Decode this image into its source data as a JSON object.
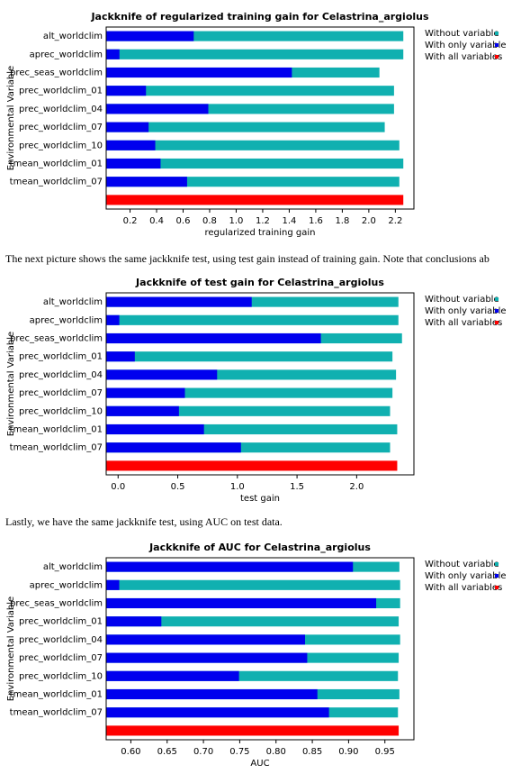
{
  "chart_data": [
    {
      "type": "bar",
      "title": "Jackknife of regularized training gain for Celastrina_argiolus",
      "xlabel": "regularized training gain",
      "ylabel": "Environmental Variable",
      "categories": [
        "alt_worldclim",
        "aprec_worldclim",
        "prec_seas_worldclim",
        "prec_worldclim_01",
        "prec_worldclim_04",
        "prec_worldclim_07",
        "prec_worldclim_10",
        "tmean_worldclim_01",
        "tmean_worldclim_07",
        null
      ],
      "series": [
        {
          "name": "Without variable",
          "color": "#10b0b0",
          "values": [
            2.26,
            2.26,
            2.08,
            2.19,
            2.19,
            2.12,
            2.23,
            2.26,
            2.23,
            null
          ]
        },
        {
          "name": "With only variable",
          "color": "#0000ee",
          "values": [
            0.68,
            0.12,
            1.42,
            0.32,
            0.79,
            0.34,
            0.39,
            0.43,
            0.63,
            null
          ]
        },
        {
          "name": "With all variables",
          "color": "#ff0000",
          "values": [
            null,
            null,
            null,
            null,
            null,
            null,
            null,
            null,
            null,
            2.26
          ]
        }
      ],
      "xlim": [
        0.02,
        2.34
      ],
      "xticks": [
        0.2,
        0.4,
        0.6,
        0.8,
        {
          "value": 1,
          "label": "1.0"
        },
        1.2,
        1.4,
        1.6,
        1.8,
        {
          "value": 2,
          "label": "2.0"
        },
        2.2
      ],
      "legend": "right"
    },
    {
      "type": "bar",
      "title": "Jackknife of test gain for Celastrina_argiolus",
      "xlabel": "test gain",
      "ylabel": "Environmental Variable",
      "categories": [
        "alt_worldclim",
        "aprec_worldclim",
        "prec_seas_worldclim",
        "prec_worldclim_01",
        "prec_worldclim_04",
        "prec_worldclim_07",
        "prec_worldclim_10",
        "tmean_worldclim_01",
        "tmean_worldclim_07",
        null
      ],
      "series": [
        {
          "name": "Without variable",
          "color": "#10b0b0",
          "values": [
            2.35,
            2.35,
            2.38,
            2.3,
            2.33,
            2.3,
            2.28,
            2.34,
            2.28,
            null
          ]
        },
        {
          "name": "With only variable",
          "color": "#0000ee",
          "values": [
            1.12,
            0.01,
            1.7,
            0.14,
            0.83,
            0.56,
            0.51,
            0.72,
            1.03,
            null
          ]
        },
        {
          "name": "With all variables",
          "color": "#ff0000",
          "values": [
            null,
            null,
            null,
            null,
            null,
            null,
            null,
            null,
            null,
            2.34
          ]
        }
      ],
      "xlim": [
        -0.1,
        2.48
      ],
      "xticks": [
        {
          "value": 0,
          "label": "0.0"
        },
        0.5,
        {
          "value": 1,
          "label": "1.0"
        },
        1.5,
        {
          "value": 2,
          "label": "2.0"
        }
      ],
      "legend": "right"
    },
    {
      "type": "bar",
      "title": "Jackknife of AUC for Celastrina_argiolus",
      "xlabel": "AUC",
      "ylabel": "Environmental Variable",
      "categories": [
        "alt_worldclim",
        "aprec_worldclim",
        "prec_seas_worldclim",
        "prec_worldclim_01",
        "prec_worldclim_04",
        "prec_worldclim_07",
        "prec_worldclim_10",
        "tmean_worldclim_01",
        "tmean_worldclim_07",
        null
      ],
      "series": [
        {
          "name": "Without variable",
          "color": "#10b0b0",
          "values": [
            0.97,
            0.971,
            0.971,
            0.969,
            0.971,
            0.969,
            0.968,
            0.97,
            0.968,
            null
          ]
        },
        {
          "name": "With only variable",
          "color": "#0000ee",
          "values": [
            0.906,
            0.584,
            0.938,
            0.642,
            0.84,
            0.843,
            0.749,
            0.857,
            0.873,
            null
          ]
        },
        {
          "name": "With all variables",
          "color": "#ff0000",
          "values": [
            null,
            null,
            null,
            null,
            null,
            null,
            null,
            null,
            null,
            0.969
          ]
        }
      ],
      "xlim": [
        0.566,
        0.99
      ],
      "xticks": [
        {
          "value": 0.6,
          "label": "0.60"
        },
        0.65,
        {
          "value": 0.7,
          "label": "0.70"
        },
        0.75,
        {
          "value": 0.8,
          "label": "0.80"
        },
        0.85,
        {
          "value": 0.9,
          "label": "0.90"
        },
        0.95
      ],
      "legend": "right"
    }
  ],
  "paragraphs": [
    "The next picture shows the same jackknife test, using test gain instead of training gain. Note that conclusions ab",
    "Lastly, we have the same jackknife test, using AUC on test data."
  ]
}
